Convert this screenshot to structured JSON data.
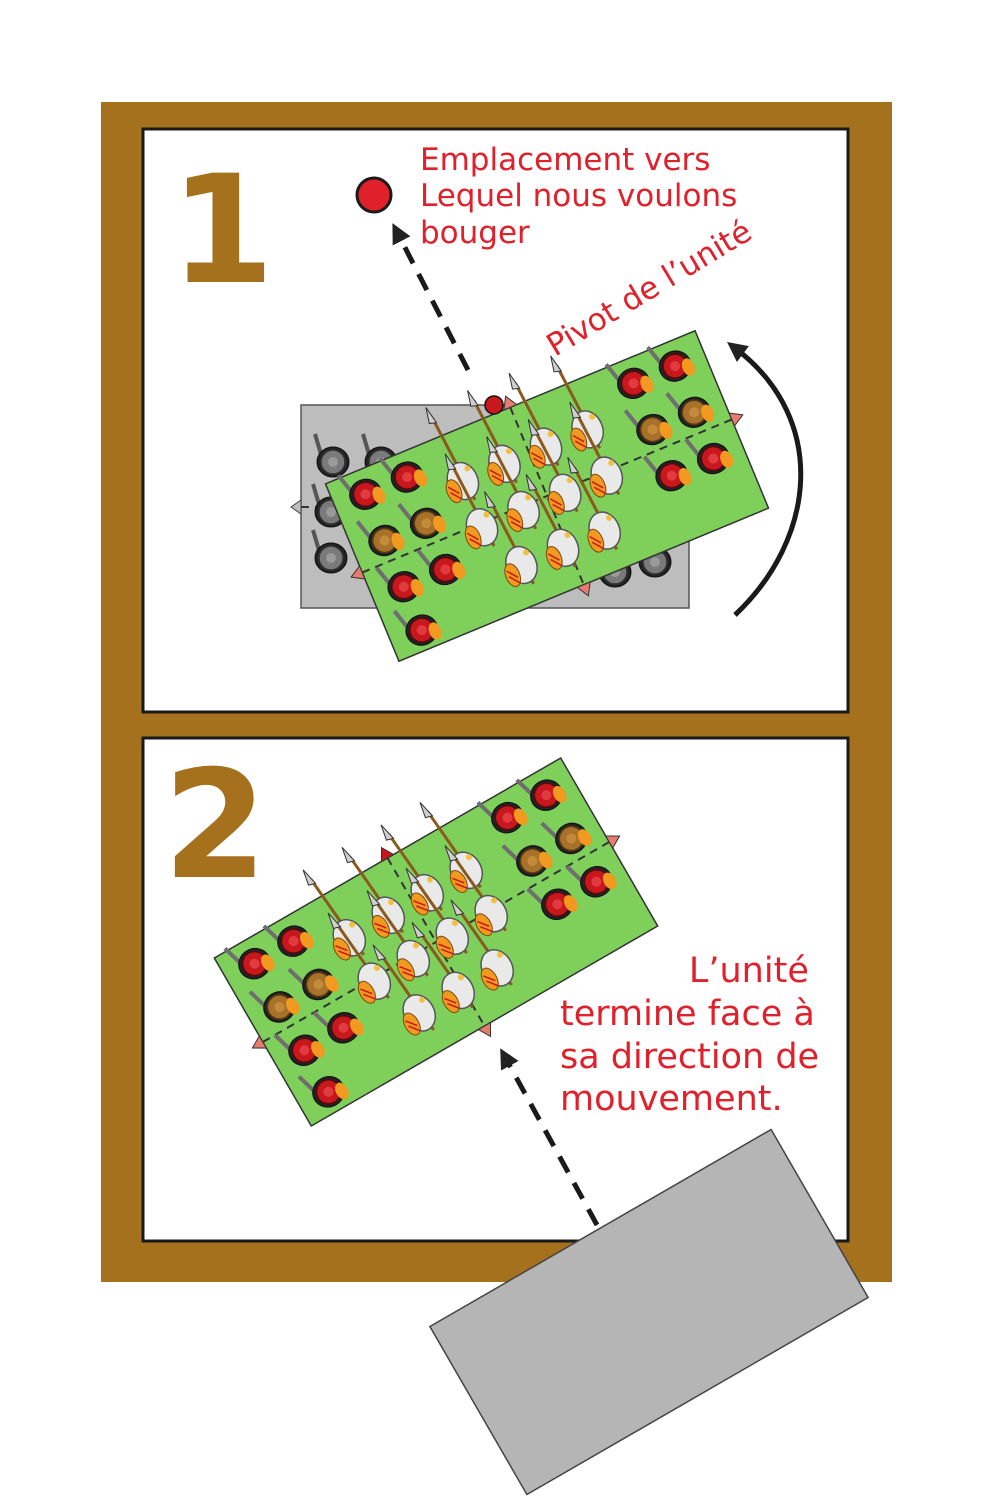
{
  "colors": {
    "frame": "#a6711d",
    "panel": "#ffffff",
    "unit_green": "#7fcf5b",
    "ghost_grey": "#bdbdbd",
    "label_red": "#e0202a",
    "arrow": "#222222",
    "soldier_red": "#c9181d",
    "soldier_brown": "#a8722a",
    "soldier_orange": "#f29a1f",
    "shield_white": "#e9e9e9"
  },
  "panel1": {
    "step_number": "1",
    "target_label": [
      "Emplacement vers",
      "Lequel nous voulons",
      "bouger"
    ],
    "pivot_label": "Pivot de l’unité",
    "target_marker_icon": "target-point-icon",
    "rotation_arrow_icon": "curved-rotation-arrow-icon"
  },
  "panel2": {
    "step_number": "2",
    "result_label": [
      "L’unité",
      "termine face à",
      "sa direction de",
      "mouvement."
    ],
    "move_arrow_icon": "dashed-move-arrow-icon"
  }
}
